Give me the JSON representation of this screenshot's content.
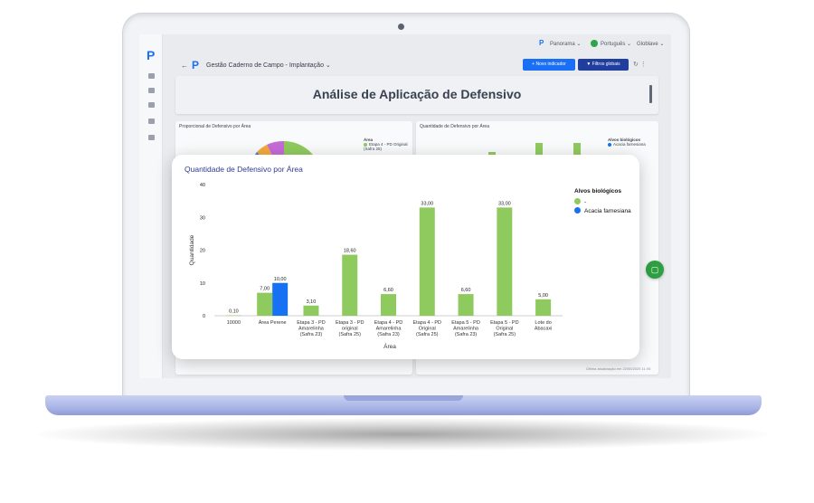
{
  "topbar": {
    "panorama": "Panorama ⌄",
    "language": "Português ⌄",
    "user": "Globlave ⌄"
  },
  "app": {
    "logo": "P",
    "breadcrumb": "Gestão Caderno de Campo - Implantação ⌄",
    "new_indicator": "+ Novo indicador",
    "global_filters": "▼ Filtros globais"
  },
  "page_title": "Análise de Aplicação de Defensivo",
  "background_cards": {
    "left_title": "Proporcional de Defensivo por Área",
    "left_legend_title": "Área",
    "left_legend_item": "Etapa 4 - PD Original (Safra 25)",
    "right_title": "Quantidade de Defensivo por Área",
    "right_legend_title": "Alvos biológicos",
    "right_legend_item": "Acacia farnesiana"
  },
  "colors": {
    "green": "#8fca5e",
    "blue": "#1672f2",
    "accent": "#1b6ff5",
    "fab": "#2ea043"
  },
  "fab_icon": "chat-icon",
  "footnote": "Última atualização em 22/05/2025 11:05",
  "chart_data": {
    "type": "bar",
    "title": "Quantidade de Defensivo por Área",
    "xlabel": "Área",
    "ylabel": "Quantidade",
    "ylim": [
      0,
      40
    ],
    "yticks": [
      0,
      10,
      20,
      30,
      40
    ],
    "legend_title": "Alvos biológicos",
    "legend_position": "top-right",
    "categories": [
      [
        "10000"
      ],
      [
        "Área Perene"
      ],
      [
        "Etapa 3 - PD",
        "Amarelinha",
        "(Safra 23)"
      ],
      [
        "Etapa 3 - PD",
        "original",
        "(Safra 25)"
      ],
      [
        "Etapa 4 - PD",
        "Amarelinha",
        "(Safra 23)"
      ],
      [
        "Etapa 4 - PD",
        "Original",
        "(Safra 25)"
      ],
      [
        "Etapa 5 - PD",
        "Amarelinha",
        "(Safra 23)"
      ],
      [
        "Etapa 5 - PD",
        "Original",
        "(Safra 25)"
      ],
      [
        "Lote do",
        "Abacaxi"
      ]
    ],
    "series": [
      {
        "name": "-",
        "color": "#8fca5e",
        "values": [
          0.1,
          7.0,
          3.1,
          18.6,
          6.6,
          33.0,
          6.6,
          33.0,
          5.0
        ],
        "labels": [
          "0,10",
          "7,00",
          "3,10",
          "18,60",
          "6,60",
          "33,00",
          "6,60",
          "33,00",
          "5,00"
        ]
      },
      {
        "name": "Acacia farnesiana",
        "color": "#1672f2",
        "values": [
          null,
          10.0,
          null,
          null,
          null,
          null,
          null,
          null,
          null
        ],
        "labels": [
          "",
          "10,00",
          "",
          "",
          "",
          "",
          "",
          "",
          ""
        ]
      }
    ]
  }
}
